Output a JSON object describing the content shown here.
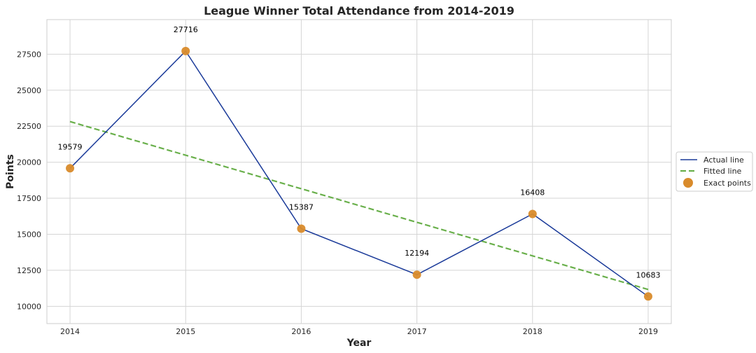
{
  "chart_data": {
    "type": "line",
    "title": "League Winner Total Attendance from 2014-2019",
    "xlabel": "Year",
    "ylabel": "Points",
    "x": [
      2014,
      2015,
      2016,
      2017,
      2018,
      2019
    ],
    "xlim": [
      2013.8,
      2019.2
    ],
    "ylim": [
      8800,
      29900
    ],
    "yticks": [
      10000,
      12500,
      15000,
      17500,
      20000,
      22500,
      25000,
      27500
    ],
    "grid": true,
    "legend_position": "right",
    "series": [
      {
        "name": "Actual line",
        "kind": "line",
        "color": "#1a3a99",
        "values": [
          19579,
          27716,
          15387,
          12194,
          16408,
          10683
        ]
      },
      {
        "name": "Fitted line",
        "kind": "dashed-line",
        "color": "#6ab04c",
        "values": [
          22820,
          20490,
          18160,
          15830,
          13500,
          11170
        ]
      },
      {
        "name": "Exact points",
        "kind": "scatter",
        "color": "#d98b2b",
        "values": [
          19579,
          27716,
          15387,
          12194,
          16408,
          10683
        ]
      }
    ],
    "data_labels": [
      "19579",
      "27716",
      "15387",
      "12194",
      "16408",
      "10683"
    ]
  }
}
